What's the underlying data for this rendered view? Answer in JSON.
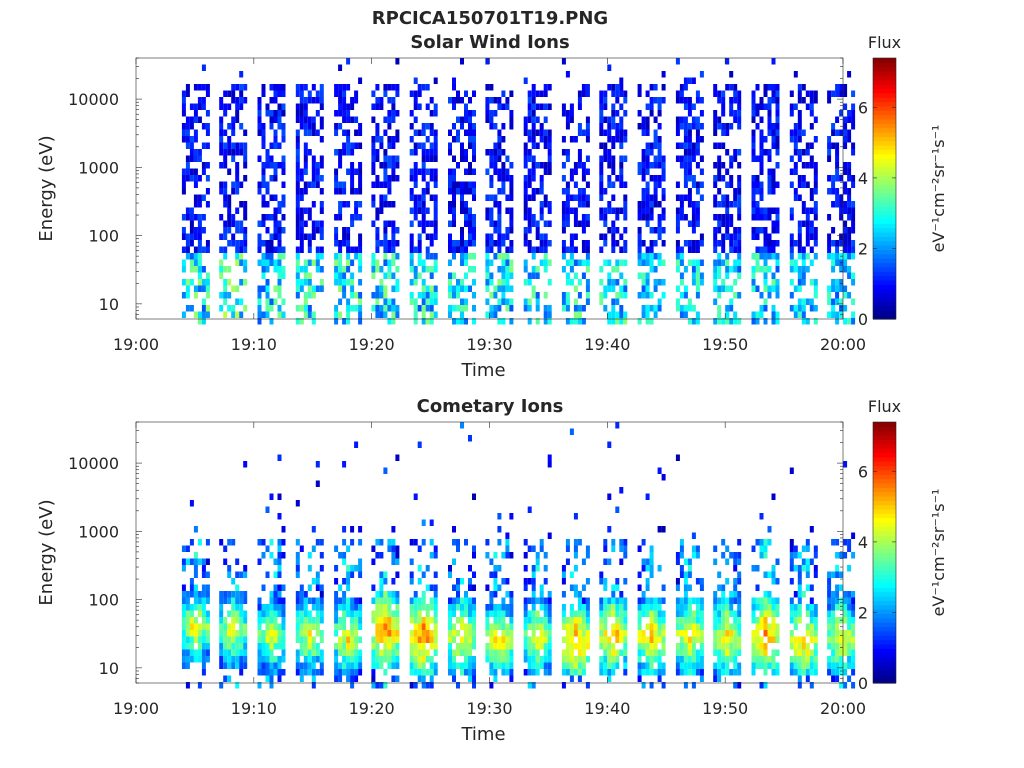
{
  "figure_title": "RPCICA150701T19.PNG",
  "chart_data": [
    {
      "type": "heatmap",
      "title": "Solar Wind Ions",
      "xlabel": "Time",
      "ylabel": "Energy (eV)",
      "x_ticks": [
        "19:00",
        "19:10",
        "19:20",
        "19:30",
        "19:40",
        "19:50",
        "20:00"
      ],
      "x_range": [
        "19:00",
        "20:00"
      ],
      "y_scale": "log",
      "y_ticks": [
        "10",
        "100",
        "1000",
        "10000"
      ],
      "ylim": [
        6,
        40000
      ],
      "colorbar": {
        "title": "Flux",
        "label": "eV⁻¹cm⁻²sr⁻¹s⁻¹",
        "ticks": [
          "0",
          "2",
          "4",
          "6"
        ],
        "range": [
          0,
          7.4
        ],
        "colormap": "jet"
      },
      "sweeps": [
        {
          "time": "19:04:55",
          "peak_flux": 4.0
        },
        {
          "time": "19:08:05",
          "peak_flux": 4.2
        },
        {
          "time": "19:11:20",
          "peak_flux": 3.8
        },
        {
          "time": "19:14:35",
          "peak_flux": 3.8
        },
        {
          "time": "19:17:50",
          "peak_flux": 3.8
        },
        {
          "time": "19:21:00",
          "peak_flux": 3.8
        },
        {
          "time": "19:24:15",
          "peak_flux": 3.8
        },
        {
          "time": "19:27:30",
          "peak_flux": 3.6
        },
        {
          "time": "19:30:40",
          "peak_flux": 3.9
        },
        {
          "time": "19:33:55",
          "peak_flux": 3.8
        },
        {
          "time": "19:37:10",
          "peak_flux": 3.8
        },
        {
          "time": "19:40:20",
          "peak_flux": 3.8
        },
        {
          "time": "19:43:35",
          "peak_flux": 3.4
        },
        {
          "time": "19:46:50",
          "peak_flux": 3.5
        },
        {
          "time": "19:50:00",
          "peak_flux": 3.5
        },
        {
          "time": "19:53:15",
          "peak_flux": 3.6
        },
        {
          "time": "19:56:30",
          "peak_flux": 3.3
        },
        {
          "time": "19:59:40",
          "peak_flux": 3.3
        }
      ]
    },
    {
      "type": "heatmap",
      "title": "Cometary Ions",
      "xlabel": "Time",
      "ylabel": "Energy (eV)",
      "x_ticks": [
        "19:00",
        "19:10",
        "19:20",
        "19:30",
        "19:40",
        "19:50",
        "20:00"
      ],
      "x_range": [
        "19:00",
        "20:00"
      ],
      "y_scale": "log",
      "y_ticks": [
        "10",
        "100",
        "1000",
        "10000"
      ],
      "ylim": [
        6,
        40000
      ],
      "colorbar": {
        "title": "Flux",
        "label": "eV⁻¹cm⁻²sr⁻¹s⁻¹",
        "ticks": [
          "0",
          "2",
          "4",
          "6"
        ],
        "range": [
          0,
          7.4
        ],
        "colormap": "jet"
      },
      "sweeps": [
        {
          "time": "19:04:55",
          "peak_flux": 5.3,
          "peak_energy_eV": 40
        },
        {
          "time": "19:08:05",
          "peak_flux": 5.2,
          "peak_energy_eV": 35
        },
        {
          "time": "19:11:20",
          "peak_flux": 5.2,
          "peak_energy_eV": 30
        },
        {
          "time": "19:14:35",
          "peak_flux": 5.3,
          "peak_energy_eV": 30
        },
        {
          "time": "19:17:50",
          "peak_flux": 5.4,
          "peak_energy_eV": 28
        },
        {
          "time": "19:21:00",
          "peak_flux": 6.3,
          "peak_energy_eV": 35
        },
        {
          "time": "19:24:15",
          "peak_flux": 6.4,
          "peak_energy_eV": 30
        },
        {
          "time": "19:27:30",
          "peak_flux": 5.6,
          "peak_energy_eV": 28
        },
        {
          "time": "19:30:40",
          "peak_flux": 5.6,
          "peak_energy_eV": 25
        },
        {
          "time": "19:33:55",
          "peak_flux": 5.4,
          "peak_energy_eV": 28
        },
        {
          "time": "19:37:10",
          "peak_flux": 6.2,
          "peak_energy_eV": 25
        },
        {
          "time": "19:40:20",
          "peak_flux": 5.9,
          "peak_energy_eV": 30
        },
        {
          "time": "19:43:35",
          "peak_flux": 5.8,
          "peak_energy_eV": 28
        },
        {
          "time": "19:46:50",
          "peak_flux": 5.6,
          "peak_energy_eV": 30
        },
        {
          "time": "19:50:00",
          "peak_flux": 5.6,
          "peak_energy_eV": 28
        },
        {
          "time": "19:53:15",
          "peak_flux": 6.2,
          "peak_energy_eV": 30
        },
        {
          "time": "19:56:30",
          "peak_flux": 5.9,
          "peak_energy_eV": 25
        },
        {
          "time": "19:59:40",
          "peak_flux": 5.6,
          "peak_energy_eV": 28
        }
      ]
    }
  ]
}
